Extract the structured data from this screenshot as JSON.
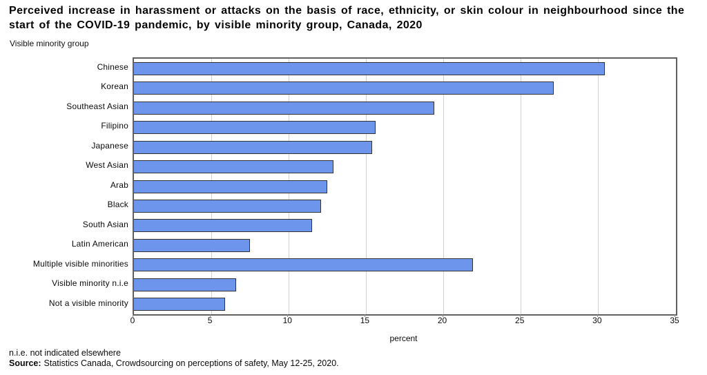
{
  "header": {
    "title": "Perceived increase in harassment or attacks on the basis of race, ethnicity, or skin colour in neighbourhood since the start of the COVID-19 pandemic, by visible minority group, Canada, 2020",
    "axis_group_label": "Visible minority group"
  },
  "chart_data": {
    "type": "bar",
    "orientation": "horizontal",
    "title": "Perceived increase in harassment or attacks on the basis of race, ethnicity, or skin colour in neighbourhood since the start of the COVID-19 pandemic, by visible minority group, Canada, 2020",
    "categories": [
      "Chinese",
      "Korean",
      "Southeast Asian",
      "Filipino",
      "Japanese",
      "West Asian",
      "Arab",
      "Black",
      "South Asian",
      "Latin American",
      "Multiple visible minorities",
      "Visible minority n.i.e",
      "Not a visible minority"
    ],
    "values": [
      30.4,
      27.1,
      19.4,
      15.6,
      15.4,
      12.9,
      12.5,
      12.1,
      11.5,
      7.5,
      21.9,
      6.6,
      5.9
    ],
    "xlabel": "percent",
    "ylabel": "Visible minority group",
    "xlim": [
      0,
      35
    ],
    "xticks": [
      0,
      5,
      10,
      15,
      20,
      25,
      30,
      35
    ],
    "grid": "vertical",
    "legend": "none",
    "colors": {
      "bar_fill": "#6D95EC",
      "bar_border": "#333333",
      "gridline": "#d2d2d2",
      "plot_border": "#5f5f5f"
    }
  },
  "footer": {
    "note": "n.i.e. not indicated elsewhere",
    "source_label": "Source:",
    "source_text": "Statistics Canada, Crowdsourcing on perceptions of safety, May 12-25, 2020."
  }
}
